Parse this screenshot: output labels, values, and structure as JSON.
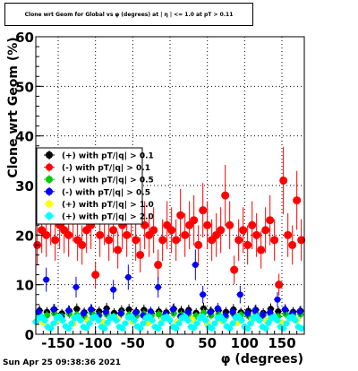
{
  "window": {
    "title": "Clone wrt Geom for Global vs φ (degrees) at | η | <= 1.0 at pT > 0.11",
    "timestamp": "Sun Apr 25 09:38:36 2021"
  },
  "chart_data": {
    "type": "scatter",
    "title": "Clone wrt Geom for Global vs φ (degrees) at | η | <= 1.0 at pT > 0.11",
    "xlabel": "φ (degrees)",
    "ylabel": "Clone wrt Geom (%)",
    "xlim": [
      -180,
      180
    ],
    "ylim": [
      0,
      60
    ],
    "x_ticks": [
      -150,
      -100,
      -50,
      0,
      50,
      100,
      150
    ],
    "y_ticks": [
      0,
      10,
      20,
      30,
      40,
      50,
      60
    ],
    "grid": true,
    "legend_position": "left-middle",
    "series": [
      {
        "name": "(+) with pT/|q| > 0.1",
        "color": "#000000",
        "x": [
          -175,
          -165,
          -155,
          -145,
          -135,
          -125,
          -115,
          -105,
          -95,
          -85,
          -75,
          -65,
          -55,
          -45,
          -35,
          -25,
          -15,
          -5,
          5,
          15,
          25,
          35,
          45,
          55,
          65,
          75,
          85,
          95,
          105,
          115,
          125,
          135,
          145,
          155,
          165,
          175
        ],
        "y": [
          4.8,
          4.5,
          5.0,
          4.2,
          4.7,
          5.1,
          4.4,
          4.9,
          4.6,
          5.2,
          4.3,
          4.8,
          5.0,
          4.5,
          4.9,
          4.2,
          4.6,
          4.4,
          5.1,
          4.7,
          4.9,
          4.3,
          5.2,
          4.6,
          4.8,
          4.5,
          5.0,
          4.4,
          4.7,
          4.9,
          4.3,
          5.1,
          4.6,
          4.8,
          4.5,
          4.7
        ]
      },
      {
        "name": "(-) with pT/|q| > 0.1",
        "color": "#ff0000",
        "x": [
          -178,
          -172,
          -166,
          -160,
          -154,
          -148,
          -142,
          -136,
          -130,
          -124,
          -118,
          -112,
          -106,
          -100,
          -94,
          -88,
          -82,
          -76,
          -70,
          -64,
          -58,
          -52,
          -46,
          -40,
          -34,
          -28,
          -22,
          -16,
          -10,
          -4,
          2,
          8,
          14,
          20,
          26,
          32,
          38,
          44,
          50,
          56,
          62,
          68,
          74,
          80,
          86,
          92,
          98,
          104,
          110,
          116,
          122,
          128,
          134,
          140,
          146,
          152,
          158,
          164,
          170,
          176
        ],
        "y": [
          18,
          21,
          20,
          23,
          19,
          22,
          21,
          20,
          24,
          19,
          18,
          21,
          22,
          12,
          20,
          23,
          19,
          21,
          17,
          22,
          20,
          25,
          19,
          16,
          22,
          20,
          21,
          14,
          19,
          22,
          21,
          19,
          24,
          20,
          22,
          23,
          18,
          25,
          22,
          19,
          20,
          21,
          28,
          22,
          13,
          19,
          21,
          18,
          22,
          20,
          17,
          21,
          23,
          19,
          10,
          31,
          20,
          18,
          27,
          19
        ]
      },
      {
        "name": "(+) with pT/|q| > 0.5",
        "color": "#00cc00",
        "x": [
          -175,
          -165,
          -155,
          -145,
          -135,
          -125,
          -115,
          -105,
          -95,
          -85,
          -75,
          -65,
          -55,
          -45,
          -35,
          -25,
          -15,
          -5,
          5,
          15,
          25,
          35,
          45,
          55,
          65,
          75,
          85,
          95,
          105,
          115,
          125,
          135,
          145,
          155,
          165,
          175
        ],
        "y": [
          4.0,
          3.8,
          4.2,
          3.6,
          4.1,
          3.9,
          3.7,
          4.3,
          3.8,
          4.0,
          3.6,
          4.2,
          3.9,
          3.7,
          4.1,
          3.8,
          4.0,
          3.6,
          4.2,
          3.9,
          4.1,
          3.7,
          4.3,
          3.8,
          4.0,
          3.6,
          4.1,
          3.9,
          3.7,
          4.2,
          3.8,
          4.0,
          3.6,
          4.1,
          3.9,
          4.0
        ]
      },
      {
        "name": "(-) with pT/|q| > 0.5",
        "color": "#0000ff",
        "x": [
          -176,
          -166,
          -156,
          -146,
          -136,
          -126,
          -116,
          -106,
          -96,
          -86,
          -76,
          -66,
          -56,
          -46,
          -36,
          -26,
          -16,
          -6,
          4,
          14,
          24,
          34,
          44,
          54,
          64,
          74,
          84,
          94,
          104,
          114,
          124,
          134,
          144,
          154,
          164,
          174
        ],
        "y": [
          4.5,
          11,
          5,
          3.5,
          4.8,
          9.5,
          4.2,
          5,
          3.8,
          4.5,
          9,
          4.2,
          11.5,
          4.4,
          3.8,
          4.6,
          9.5,
          4,
          5,
          3.6,
          4.4,
          14,
          8,
          4.5,
          5.2,
          3.8,
          4.5,
          8,
          4.2,
          4.8,
          3.9,
          4.4,
          7,
          5,
          4.2,
          4.6
        ]
      },
      {
        "name": "(+) with pT/|q| > 1.0",
        "color": "#ffff00",
        "x": [
          -170,
          -150,
          -130,
          -110,
          -90,
          -70,
          -50,
          -30,
          -10,
          10,
          30,
          50,
          70,
          90,
          110,
          130,
          150,
          170
        ],
        "y": [
          2.5,
          3.0,
          2.2,
          2.8,
          2.4,
          3.1,
          2.6,
          2.3,
          2.9,
          2.5,
          3.0,
          2.2,
          2.7,
          2.4,
          3.0,
          2.6,
          2.3,
          2.8
        ]
      },
      {
        "name": "(+) with pT/|q| > 2.0",
        "color": "#00ffff",
        "x": [
          -180,
          -176,
          -172,
          -168,
          -164,
          -160,
          -156,
          -152,
          -148,
          -144,
          -140,
          -136,
          -132,
          -128,
          -124,
          -120,
          -116,
          -112,
          -108,
          -104,
          -100,
          -96,
          -92,
          -88,
          -84,
          -80,
          -76,
          -72,
          -68,
          -64,
          -60,
          -56,
          -52,
          -48,
          -44,
          -40,
          -36,
          -32,
          -28,
          -24,
          -20,
          -16,
          -12,
          -8,
          -4,
          0,
          4,
          8,
          12,
          16,
          20,
          24,
          28,
          32,
          36,
          40,
          44,
          48,
          52,
          56,
          60,
          64,
          68,
          72,
          76,
          80,
          84,
          88,
          92,
          96,
          100,
          104,
          108,
          112,
          116,
          120,
          124,
          128,
          132,
          136,
          140,
          144,
          148,
          152,
          156,
          160,
          164,
          168,
          172,
          176
        ],
        "y": [
          2.5,
          3.3,
          3.5,
          2.8,
          1.5,
          1.2,
          2.2,
          3.3,
          3.5,
          2.8,
          1.6,
          1.2,
          2.2,
          3.3,
          3.5,
          2.8,
          1.5,
          1.3,
          2.2,
          3.3,
          3.5,
          2.8,
          1.5,
          1.2,
          2.3,
          3.3,
          3.5,
          2.8,
          1.5,
          1.2,
          2.2,
          3.4,
          3.5,
          2.8,
          1.6,
          1.2,
          2.2,
          3.3,
          3.5,
          2.8,
          1.5,
          1.2,
          2.2,
          3.3,
          3.5,
          2.8,
          1.5,
          1.2,
          2.2,
          3.3,
          3.5,
          2.8,
          1.5,
          1.3,
          2.2,
          3.3,
          3.5,
          2.8,
          1.5,
          1.2,
          2.2,
          3.3,
          3.5,
          2.8,
          1.6,
          1.2,
          2.2,
          3.3,
          3.5,
          2.8,
          1.5,
          1.2,
          2.2,
          3.3,
          3.5,
          2.8,
          1.5,
          1.2,
          2.3,
          3.3,
          3.5,
          2.8,
          1.5,
          1.2,
          2.2,
          3.3,
          3.5,
          2.8,
          1.5,
          1.2
        ]
      }
    ]
  }
}
